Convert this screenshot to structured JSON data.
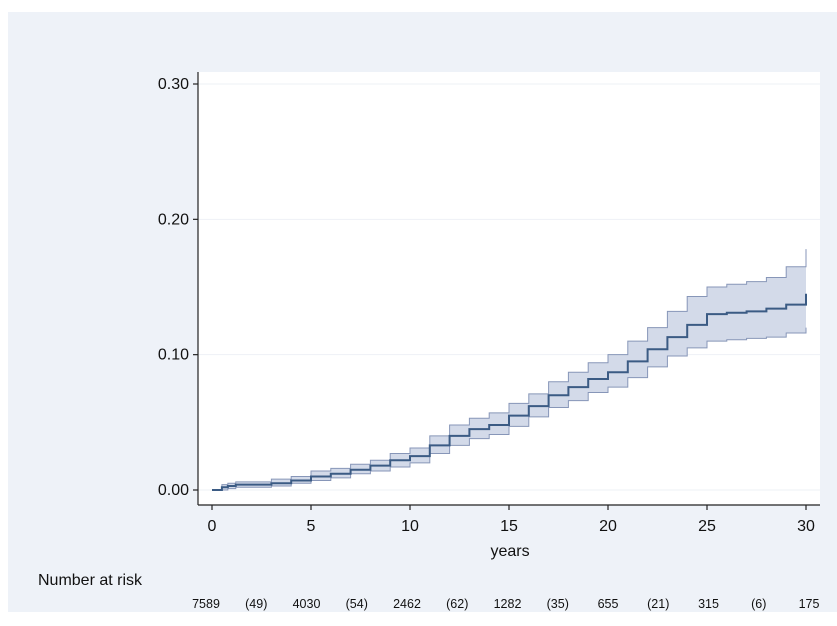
{
  "chart_data": {
    "type": "line",
    "title": "",
    "xlabel": "years",
    "ylabel": "",
    "xlim": [
      0,
      30
    ],
    "ylim": [
      0,
      0.3
    ],
    "x_ticks": [
      0,
      5,
      10,
      15,
      20,
      25,
      30
    ],
    "x_tick_labels": [
      "0",
      "5",
      "10",
      "15",
      "20",
      "25",
      "30"
    ],
    "y_ticks": [
      0,
      0.1,
      0.2,
      0.3
    ],
    "y_tick_labels": [
      "0.00",
      "0.10",
      "0.20",
      "0.30"
    ],
    "grid": true,
    "step": true,
    "series": [
      {
        "x": [
          0,
          0.5,
          0.8,
          1.2,
          2.0,
          3.0,
          4.0,
          5.0,
          6.0,
          7.0,
          8.0,
          9.0,
          10.0,
          11.0,
          12.0,
          13.0,
          14.0,
          15.0,
          16.0,
          17.0,
          18.0,
          19.0,
          20.0,
          21.0,
          22.0,
          23.0,
          24.0,
          25.0,
          26.0,
          27.0,
          28.0,
          29.0,
          30.0
        ],
        "y": [
          0,
          0.002,
          0.003,
          0.004,
          0.004,
          0.005,
          0.007,
          0.01,
          0.012,
          0.015,
          0.018,
          0.022,
          0.025,
          0.033,
          0.04,
          0.045,
          0.048,
          0.055,
          0.062,
          0.07,
          0.076,
          0.082,
          0.087,
          0.095,
          0.104,
          0.113,
          0.122,
          0.13,
          0.131,
          0.132,
          0.134,
          0.137,
          0.145
        ],
        "lower": [
          0,
          0.0,
          0.001,
          0.002,
          0.002,
          0.003,
          0.005,
          0.007,
          0.009,
          0.012,
          0.014,
          0.017,
          0.02,
          0.027,
          0.033,
          0.038,
          0.041,
          0.047,
          0.054,
          0.061,
          0.066,
          0.072,
          0.076,
          0.083,
          0.091,
          0.099,
          0.105,
          0.11,
          0.111,
          0.112,
          0.113,
          0.116,
          0.12
        ],
        "upper": [
          0,
          0.004,
          0.005,
          0.006,
          0.006,
          0.008,
          0.01,
          0.014,
          0.016,
          0.019,
          0.022,
          0.027,
          0.031,
          0.04,
          0.048,
          0.053,
          0.057,
          0.064,
          0.071,
          0.08,
          0.087,
          0.094,
          0.1,
          0.11,
          0.12,
          0.132,
          0.143,
          0.15,
          0.152,
          0.154,
          0.157,
          0.165,
          0.178
        ]
      }
    ],
    "risk_table": {
      "title": "Number at risk",
      "labels": [
        "7589",
        "(49)",
        "4030",
        "(54)",
        "2462",
        "(62)",
        "1282",
        "(35)",
        "655",
        "(21)",
        "315",
        "(6)",
        "175"
      ],
      "positions": [
        0,
        2.5,
        5,
        7.5,
        10,
        12.5,
        15,
        17.5,
        20,
        22.5,
        25,
        27.5,
        30
      ]
    },
    "colors": {
      "line": "#3b5b84",
      "band_fill": "#d3dae9",
      "band_edge": "#8796b8",
      "outer_bg": "#eef2f8",
      "plot_bg": "#ffffff",
      "grid": "#eef1f6",
      "axis": "#222222"
    }
  }
}
